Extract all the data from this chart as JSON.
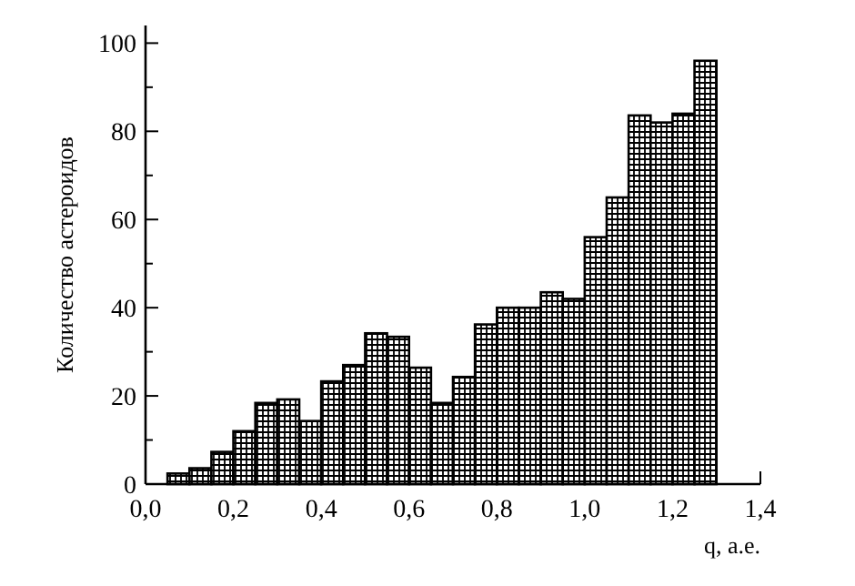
{
  "chart_data": {
    "type": "histogram",
    "xlabel": "q, а.е.",
    "ylabel": "Количество астероидов",
    "bins": [
      0.05,
      0.1,
      0.15,
      0.2,
      0.25,
      0.3,
      0.35,
      0.4,
      0.45,
      0.5,
      0.55,
      0.6,
      0.65,
      0.7,
      0.75,
      0.8,
      0.85,
      0.9,
      0.95,
      1.0,
      1.05,
      1.1,
      1.15,
      1.2,
      1.25,
      1.3
    ],
    "values": [
      2.4,
      3.6,
      7.3,
      12,
      18.4,
      19.2,
      14.3,
      23.3,
      27,
      34.2,
      33.4,
      26.4,
      18.4,
      24.3,
      36.2,
      40,
      40,
      43.5,
      42,
      56,
      65,
      83.6,
      82,
      84,
      96
    ],
    "color": "#000000",
    "xlim": [
      0,
      1.4
    ],
    "ylim": [
      0,
      104
    ],
    "xticks": [
      {
        "value": 0,
        "label": "0,0"
      },
      {
        "value": 0.1,
        "label": null
      },
      {
        "value": 0.2,
        "label": "0,2"
      },
      {
        "value": 0.3,
        "label": null
      },
      {
        "value": 0.4,
        "label": "0,4"
      },
      {
        "value": 0.5,
        "label": null
      },
      {
        "value": 0.6,
        "label": "0,6"
      },
      {
        "value": 0.7,
        "label": null
      },
      {
        "value": 0.8,
        "label": "0,8"
      },
      {
        "value": 0.9,
        "label": null
      },
      {
        "value": 1.0,
        "label": "1,0"
      },
      {
        "value": 1.1,
        "label": null
      },
      {
        "value": 1.2,
        "label": "1,2"
      },
      {
        "value": 1.3,
        "label": null
      },
      {
        "value": 1.4,
        "label": "1,4"
      }
    ],
    "yticks": [
      0,
      {
        "value": 10,
        "label": null
      },
      20,
      {
        "value": 30,
        "label": null
      },
      40,
      {
        "value": 50,
        "label": null
      },
      60,
      {
        "value": 70,
        "label": null
      },
      80,
      {
        "value": 90,
        "label": null
      },
      100
    ],
    "grid": false
  }
}
